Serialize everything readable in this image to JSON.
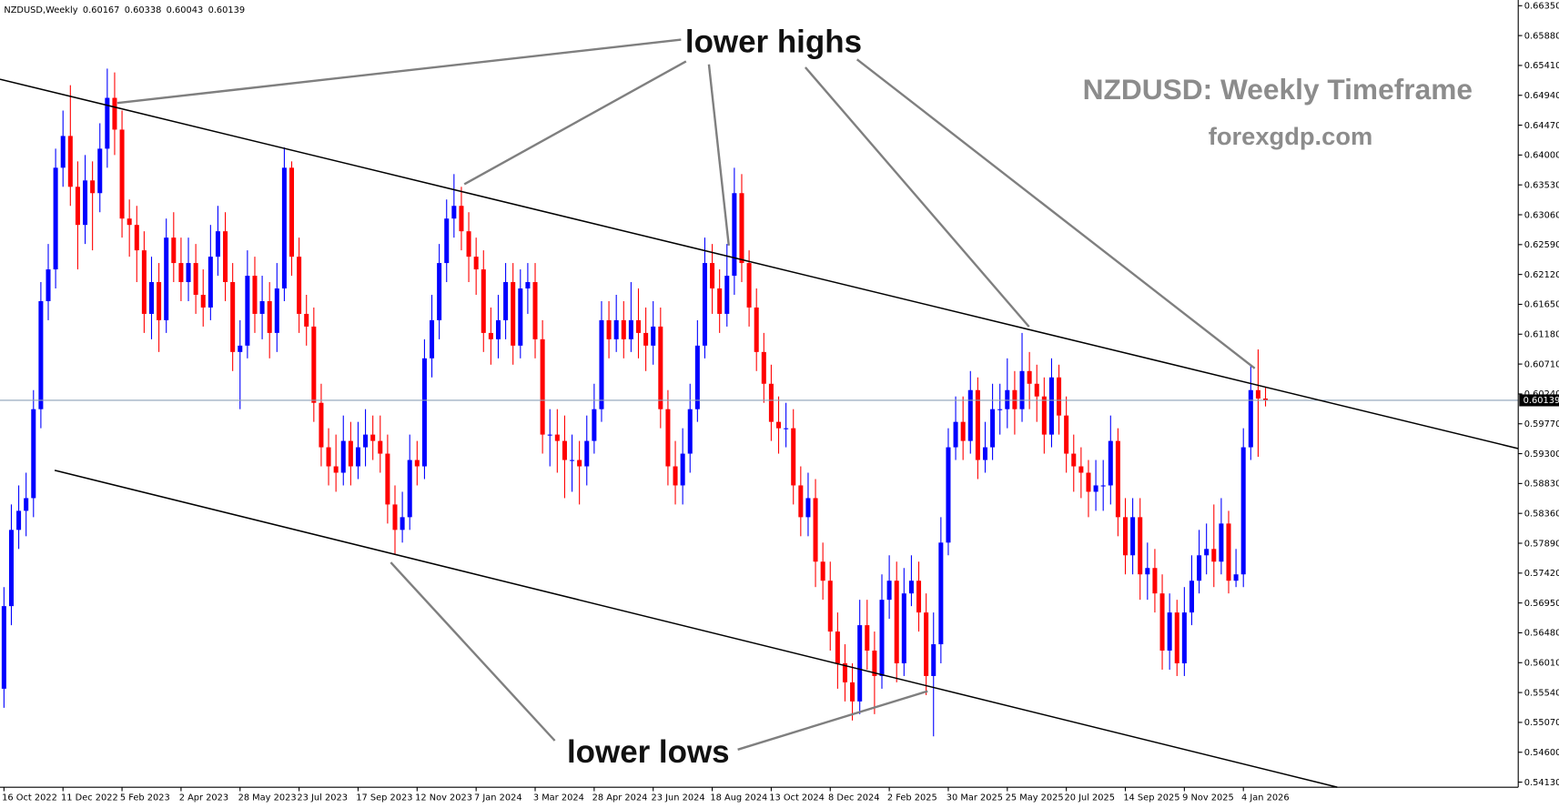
{
  "chart_data": {
    "type": "candlestick",
    "symbol": "NZDUSD,Weekly",
    "title": "NZDUSD: Weekly Timeframe",
    "subtitle": "forexgdp.com",
    "annotations": [
      "lower highs",
      "lower lows"
    ],
    "up_color": "#0000ff",
    "down_color": "#ff0000",
    "categories": [
      "16 Oct 2022",
      null,
      null,
      null,
      null,
      null,
      null,
      null,
      "11 Dec 2022",
      null,
      null,
      null,
      null,
      null,
      null,
      null,
      "5 Feb 2023",
      null,
      null,
      null,
      null,
      null,
      null,
      null,
      "2 Apr 2023",
      null,
      null,
      null,
      null,
      null,
      null,
      null,
      "28 May 2023",
      null,
      null,
      null,
      null,
      null,
      null,
      null,
      "23 Jul 2023",
      null,
      null,
      null,
      null,
      null,
      null,
      null,
      "17 Sep 2023",
      null,
      null,
      null,
      null,
      null,
      null,
      null,
      "12 Nov 2023",
      null,
      null,
      null,
      null,
      null,
      null,
      null,
      "7 Jan 2024",
      null,
      null,
      null,
      null,
      null,
      null,
      null,
      "3 Mar 2024",
      null,
      null,
      null,
      null,
      null,
      null,
      null,
      "28 Apr 2024",
      null,
      null,
      null,
      null,
      null,
      null,
      null,
      "23 Jun 2024",
      null,
      null,
      null,
      null,
      null,
      null,
      null,
      "18 Aug 2024",
      null,
      null,
      null,
      null,
      null,
      null,
      null,
      "13 Oct 2024",
      null,
      null,
      null,
      null,
      null,
      null,
      null,
      "8 Dec 2024",
      null,
      null,
      null,
      null,
      null,
      null,
      null,
      "2 Feb 2025",
      null,
      null,
      null,
      null,
      null,
      null,
      null,
      "30 Mar 2025",
      null,
      null,
      null,
      null,
      null,
      null,
      null,
      "25 May 2025",
      null,
      null,
      null,
      null,
      null,
      null,
      null,
      "20 Jul 2025",
      null,
      null,
      null,
      null,
      null,
      null,
      null,
      "14 Sep 2025",
      null,
      null,
      null,
      null,
      null,
      null,
      null,
      "9 Nov 2025",
      null,
      null,
      null,
      null,
      null,
      null,
      null,
      "4 Jan 2026",
      null,
      null,
      null
    ],
    "open": [
      0.556,
      0.569,
      0.581,
      0.584,
      0.586,
      0.6,
      0.617,
      0.622,
      0.638,
      0.643,
      0.635,
      0.629,
      0.636,
      0.634,
      0.641,
      0.649,
      0.644,
      0.63,
      0.629,
      0.625,
      0.615,
      0.62,
      0.614,
      0.627,
      0.623,
      0.62,
      0.623,
      0.618,
      0.616,
      0.624,
      0.628,
      0.62,
      0.609,
      0.61,
      0.621,
      0.615,
      0.617,
      0.612,
      0.619,
      0.638,
      0.624,
      0.615,
      0.613,
      0.601,
      0.594,
      0.591,
      0.59,
      0.595,
      0.591,
      0.594,
      0.596,
      0.595,
      0.593,
      0.585,
      0.581,
      0.583,
      0.592,
      0.591,
      0.608,
      0.614,
      0.623,
      0.63,
      0.632,
      0.628,
      0.624,
      0.622,
      0.612,
      0.611,
      0.614,
      0.62,
      0.61,
      0.619,
      0.62,
      0.611,
      0.596,
      0.596,
      0.595,
      0.592,
      0.592,
      0.591,
      0.595,
      0.6,
      0.614,
      0.611,
      0.614,
      0.611,
      0.614,
      0.612,
      0.61,
      0.613,
      0.6,
      0.591,
      0.588,
      0.593,
      0.6,
      0.61,
      0.623,
      0.619,
      0.615,
      0.621,
      0.634,
      0.623,
      0.616,
      0.609,
      0.604,
      0.598,
      0.597,
      0.597,
      0.588,
      0.583,
      0.586,
      0.576,
      0.573,
      0.565,
      0.56,
      0.557,
      0.554,
      0.566,
      0.562,
      0.558,
      0.57,
      0.573,
      0.56,
      0.571,
      0.573,
      0.568,
      0.558,
      0.563,
      0.579,
      0.594,
      0.598,
      0.595,
      0.603,
      0.592,
      0.594,
      0.6,
      0.6,
      0.603,
      0.6,
      0.606,
      0.604,
      0.602,
      0.596,
      0.605,
      0.599,
      0.593,
      0.591,
      0.59,
      0.587,
      0.588,
      0.588,
      0.595,
      0.583,
      0.577,
      0.583,
      0.574,
      0.575,
      0.571,
      0.562,
      0.568,
      0.56,
      0.568,
      0.573,
      0.577,
      0.578,
      0.576,
      0.582,
      0.573,
      0.574,
      0.594,
      0.603,
      0.60167
    ],
    "high": [
      0.572,
      0.585,
      0.588,
      0.59,
      0.603,
      0.62,
      0.626,
      0.641,
      0.647,
      0.651,
      0.639,
      0.64,
      0.639,
      0.645,
      0.6536,
      0.653,
      0.647,
      0.633,
      0.632,
      0.628,
      0.624,
      0.623,
      0.63,
      0.631,
      0.627,
      0.627,
      0.626,
      0.622,
      0.629,
      0.632,
      0.631,
      0.623,
      0.614,
      0.625,
      0.624,
      0.621,
      0.62,
      0.623,
      0.6412,
      0.639,
      0.627,
      0.618,
      0.616,
      0.604,
      0.597,
      0.596,
      0.599,
      0.598,
      0.598,
      0.6,
      0.599,
      0.599,
      0.596,
      0.588,
      0.587,
      0.596,
      0.595,
      0.611,
      0.618,
      0.626,
      0.633,
      0.637,
      0.635,
      0.631,
      0.627,
      0.625,
      0.616,
      0.618,
      0.623,
      0.623,
      0.622,
      0.623,
      0.623,
      0.614,
      0.6,
      0.6,
      0.599,
      0.596,
      0.595,
      0.599,
      0.604,
      0.617,
      0.617,
      0.618,
      0.617,
      0.62,
      0.619,
      0.616,
      0.617,
      0.616,
      0.603,
      0.595,
      0.597,
      0.604,
      0.614,
      0.627,
      0.626,
      0.622,
      0.626,
      0.638,
      0.637,
      0.625,
      0.619,
      0.612,
      0.607,
      0.602,
      0.601,
      0.6,
      0.591,
      0.59,
      0.589,
      0.579,
      0.576,
      0.568,
      0.563,
      0.56,
      0.57,
      0.57,
      0.565,
      0.574,
      0.577,
      0.576,
      0.575,
      0.577,
      0.576,
      0.571,
      0.568,
      0.583,
      0.597,
      0.602,
      0.602,
      0.606,
      0.605,
      0.598,
      0.604,
      0.604,
      0.608,
      0.606,
      0.612,
      0.609,
      0.607,
      0.605,
      0.608,
      0.607,
      0.602,
      0.596,
      0.594,
      0.592,
      0.592,
      0.592,
      0.599,
      0.597,
      0.586,
      0.586,
      0.586,
      0.579,
      0.578,
      0.574,
      0.571,
      0.57,
      0.572,
      0.577,
      0.581,
      0.582,
      0.585,
      0.586,
      0.584,
      0.578,
      0.597,
      0.607,
      0.6094,
      0.60338
    ],
    "low": [
      0.553,
      0.566,
      0.578,
      0.58,
      0.583,
      0.597,
      0.614,
      0.619,
      0.635,
      0.632,
      0.622,
      0.626,
      0.625,
      0.631,
      0.638,
      0.64,
      0.627,
      0.624,
      0.62,
      0.612,
      0.611,
      0.609,
      0.612,
      0.62,
      0.617,
      0.617,
      0.615,
      0.613,
      0.614,
      0.621,
      0.617,
      0.606,
      0.6,
      0.608,
      0.612,
      0.611,
      0.608,
      0.609,
      0.617,
      0.621,
      0.612,
      0.61,
      0.598,
      0.591,
      0.588,
      0.587,
      0.588,
      0.588,
      0.589,
      0.591,
      0.592,
      0.59,
      0.582,
      0.5772,
      0.579,
      0.581,
      0.588,
      0.589,
      0.605,
      0.611,
      0.62,
      0.627,
      0.625,
      0.62,
      0.618,
      0.609,
      0.607,
      0.608,
      0.611,
      0.607,
      0.608,
      0.615,
      0.608,
      0.593,
      0.591,
      0.59,
      0.586,
      0.587,
      0.585,
      0.588,
      0.593,
      0.598,
      0.608,
      0.609,
      0.608,
      0.609,
      0.608,
      0.606,
      0.607,
      0.597,
      0.588,
      0.585,
      0.585,
      0.59,
      0.598,
      0.608,
      0.615,
      0.612,
      0.613,
      0.618,
      0.62,
      0.613,
      0.606,
      0.601,
      0.595,
      0.593,
      0.594,
      0.585,
      0.58,
      0.58,
      0.572,
      0.57,
      0.562,
      0.556,
      0.554,
      0.551,
      0.552,
      0.559,
      0.552,
      0.556,
      0.567,
      0.557,
      0.558,
      0.569,
      0.565,
      0.555,
      0.5485,
      0.56,
      0.577,
      0.592,
      0.592,
      0.593,
      0.589,
      0.59,
      0.592,
      0.596,
      0.597,
      0.596,
      0.598,
      0.6,
      0.598,
      0.593,
      0.594,
      0.596,
      0.59,
      0.587,
      0.586,
      0.583,
      0.584,
      0.584,
      0.585,
      0.58,
      0.574,
      0.574,
      0.57,
      0.57,
      0.568,
      0.559,
      0.559,
      0.558,
      0.558,
      0.566,
      0.571,
      0.574,
      0.572,
      0.574,
      0.571,
      0.572,
      0.572,
      0.592,
      0.5925,
      0.60043
    ],
    "close": [
      0.569,
      0.581,
      0.584,
      0.586,
      0.6,
      0.617,
      0.622,
      0.638,
      0.643,
      0.635,
      0.629,
      0.636,
      0.634,
      0.641,
      0.649,
      0.644,
      0.63,
      0.629,
      0.625,
      0.615,
      0.62,
      0.614,
      0.627,
      0.623,
      0.62,
      0.623,
      0.618,
      0.616,
      0.624,
      0.628,
      0.62,
      0.609,
      0.61,
      0.621,
      0.615,
      0.617,
      0.612,
      0.619,
      0.638,
      0.624,
      0.615,
      0.613,
      0.601,
      0.594,
      0.591,
      0.59,
      0.595,
      0.591,
      0.594,
      0.596,
      0.595,
      0.593,
      0.585,
      0.581,
      0.583,
      0.592,
      0.591,
      0.608,
      0.614,
      0.623,
      0.63,
      0.632,
      0.628,
      0.624,
      0.622,
      0.612,
      0.611,
      0.614,
      0.62,
      0.61,
      0.619,
      0.62,
      0.611,
      0.596,
      0.596,
      0.595,
      0.592,
      0.592,
      0.591,
      0.595,
      0.6,
      0.614,
      0.611,
      0.614,
      0.611,
      0.614,
      0.612,
      0.61,
      0.613,
      0.6,
      0.591,
      0.588,
      0.593,
      0.6,
      0.61,
      0.623,
      0.619,
      0.615,
      0.621,
      0.634,
      0.623,
      0.616,
      0.609,
      0.604,
      0.598,
      0.597,
      0.597,
      0.588,
      0.583,
      0.586,
      0.576,
      0.573,
      0.565,
      0.56,
      0.557,
      0.554,
      0.566,
      0.562,
      0.558,
      0.57,
      0.573,
      0.56,
      0.571,
      0.573,
      0.568,
      0.558,
      0.563,
      0.579,
      0.594,
      0.598,
      0.595,
      0.603,
      0.592,
      0.594,
      0.6,
      0.6,
      0.603,
      0.6,
      0.606,
      0.604,
      0.602,
      0.596,
      0.605,
      0.599,
      0.593,
      0.591,
      0.59,
      0.587,
      0.588,
      0.588,
      0.595,
      0.583,
      0.577,
      0.583,
      0.574,
      0.575,
      0.571,
      0.562,
      0.568,
      0.56,
      0.568,
      0.573,
      0.577,
      0.578,
      0.576,
      0.582,
      0.573,
      0.574,
      0.594,
      0.603,
      0.60167,
      0.60139
    ],
    "ylim": [
      0.5405,
      0.6644
    ],
    "yticks": [
      {
        "value": 0.6635,
        "label": "0.66350"
      },
      {
        "value": 0.6588,
        "label": "0.65880"
      },
      {
        "value": 0.6541,
        "label": "0.65410"
      },
      {
        "value": 0.6494,
        "label": "0.64940"
      },
      {
        "value": 0.6447,
        "label": "0.64470"
      },
      {
        "value": 0.64,
        "label": "0.64000"
      },
      {
        "value": 0.6353,
        "label": "0.63530"
      },
      {
        "value": 0.6306,
        "label": "0.63060"
      },
      {
        "value": 0.6259,
        "label": "0.62590"
      },
      {
        "value": 0.6212,
        "label": "0.62120"
      },
      {
        "value": 0.6165,
        "label": "0.61650"
      },
      {
        "value": 0.6118,
        "label": "0.61180"
      },
      {
        "value": 0.6071,
        "label": "0.60710"
      },
      {
        "value": 0.6024,
        "label": "0.60240"
      },
      {
        "value": 0.5977,
        "label": "0.59770"
      },
      {
        "value": 0.593,
        "label": "0.59300"
      },
      {
        "value": 0.5883,
        "label": "0.58830"
      },
      {
        "value": 0.5836,
        "label": "0.58360"
      },
      {
        "value": 0.5789,
        "label": "0.57890"
      },
      {
        "value": 0.5742,
        "label": "0.57420"
      },
      {
        "value": 0.5695,
        "label": "0.56950"
      },
      {
        "value": 0.5648,
        "label": "0.56480"
      },
      {
        "value": 0.5601,
        "label": "0.56010"
      },
      {
        "value": 0.5554,
        "label": "0.55540"
      },
      {
        "value": 0.5507,
        "label": "0.55070"
      },
      {
        "value": 0.546,
        "label": "0.54600"
      },
      {
        "value": 0.5413,
        "label": "0.54130"
      }
    ]
  }
}
